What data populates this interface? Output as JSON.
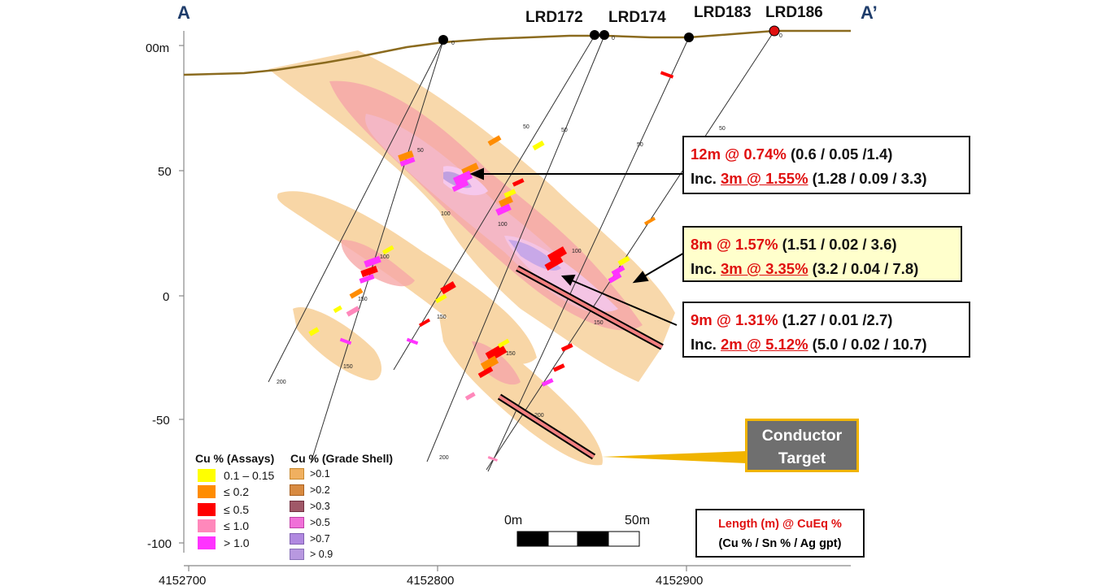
{
  "section": {
    "left_label": "A",
    "right_label": "A’"
  },
  "holes": [
    "LRD172",
    "LRD174",
    "LRD183",
    "LRD186"
  ],
  "axes": {
    "y_ticks": [
      "00m",
      "50",
      "0",
      "-50",
      "-100"
    ],
    "x_ticks": [
      "4152700",
      "4152800",
      "4152900"
    ],
    "depth_ticks": [
      "50",
      "100",
      "150",
      "200"
    ],
    "trace_zero": "0"
  },
  "annotations": [
    {
      "line1_red": "12m @ 0.74%",
      "line1_rest": " (0.6 / 0.05 /1.4)",
      "line2_prefix": "Inc. ",
      "line2_red": "3m @ 1.55%",
      "line2_rest": " (1.28 / 0.09 / 3.3)",
      "background": "#ffffff"
    },
    {
      "line1_red": "8m @ 1.57%",
      "line1_rest": " (1.51 / 0.02 / 3.6)",
      "line2_prefix": "Inc. ",
      "line2_red": "3m @ 3.35%",
      "line2_rest": " (3.2 / 0.04 / 7.8)",
      "background": "#ffffcc"
    },
    {
      "line1_red": "9m @ 1.31%",
      "line1_rest": " (1.27 / 0.01 /2.7)",
      "line2_prefix": "Inc. ",
      "line2_red": "2m @ 5.12%",
      "line2_rest": " (5.0 / 0.02 / 10.7)",
      "background": "#ffffff"
    }
  ],
  "conductor": {
    "line1": "Conductor",
    "line2": "Target"
  },
  "legend_assays": {
    "title": "Cu % (Assays)",
    "items": [
      {
        "label": "0.1 – 0.15",
        "color": "#ffff00"
      },
      {
        "label": "≤ 0.2",
        "color": "#ff8c00"
      },
      {
        "label": "≤ 0.5",
        "color": "#ff0000"
      },
      {
        "label": "≤ 1.0",
        "color": "#ff88bb"
      },
      {
        "label": "> 1.0",
        "color": "#ff33ff"
      }
    ]
  },
  "legend_shell": {
    "title": "Cu % (Grade Shell)",
    "items": [
      {
        "label": ">0.1",
        "color": "#f0b060"
      },
      {
        "label": ">0.2",
        "color": "#d88a40"
      },
      {
        "label": ">0.3",
        "color": "#a05868"
      },
      {
        "label": ">0.5",
        "color": "#f070d8"
      },
      {
        "label": ">0.7",
        "color": "#b088e0"
      },
      {
        "label": "> 0.9",
        "color": "#b898e0"
      }
    ]
  },
  "scale_bar": {
    "start": "0m",
    "end": "50m"
  },
  "key": {
    "line1": "Length (m) @ CuEq %",
    "line2": "(Cu % / Sn % / Ag gpt)"
  },
  "colors": {
    "topography": "#8b6b1f",
    "accent_red": "#e01010",
    "conductor_fill": "#6f6f6f",
    "conductor_border": "#f0b400",
    "title_blue": "#1f3d6b"
  }
}
